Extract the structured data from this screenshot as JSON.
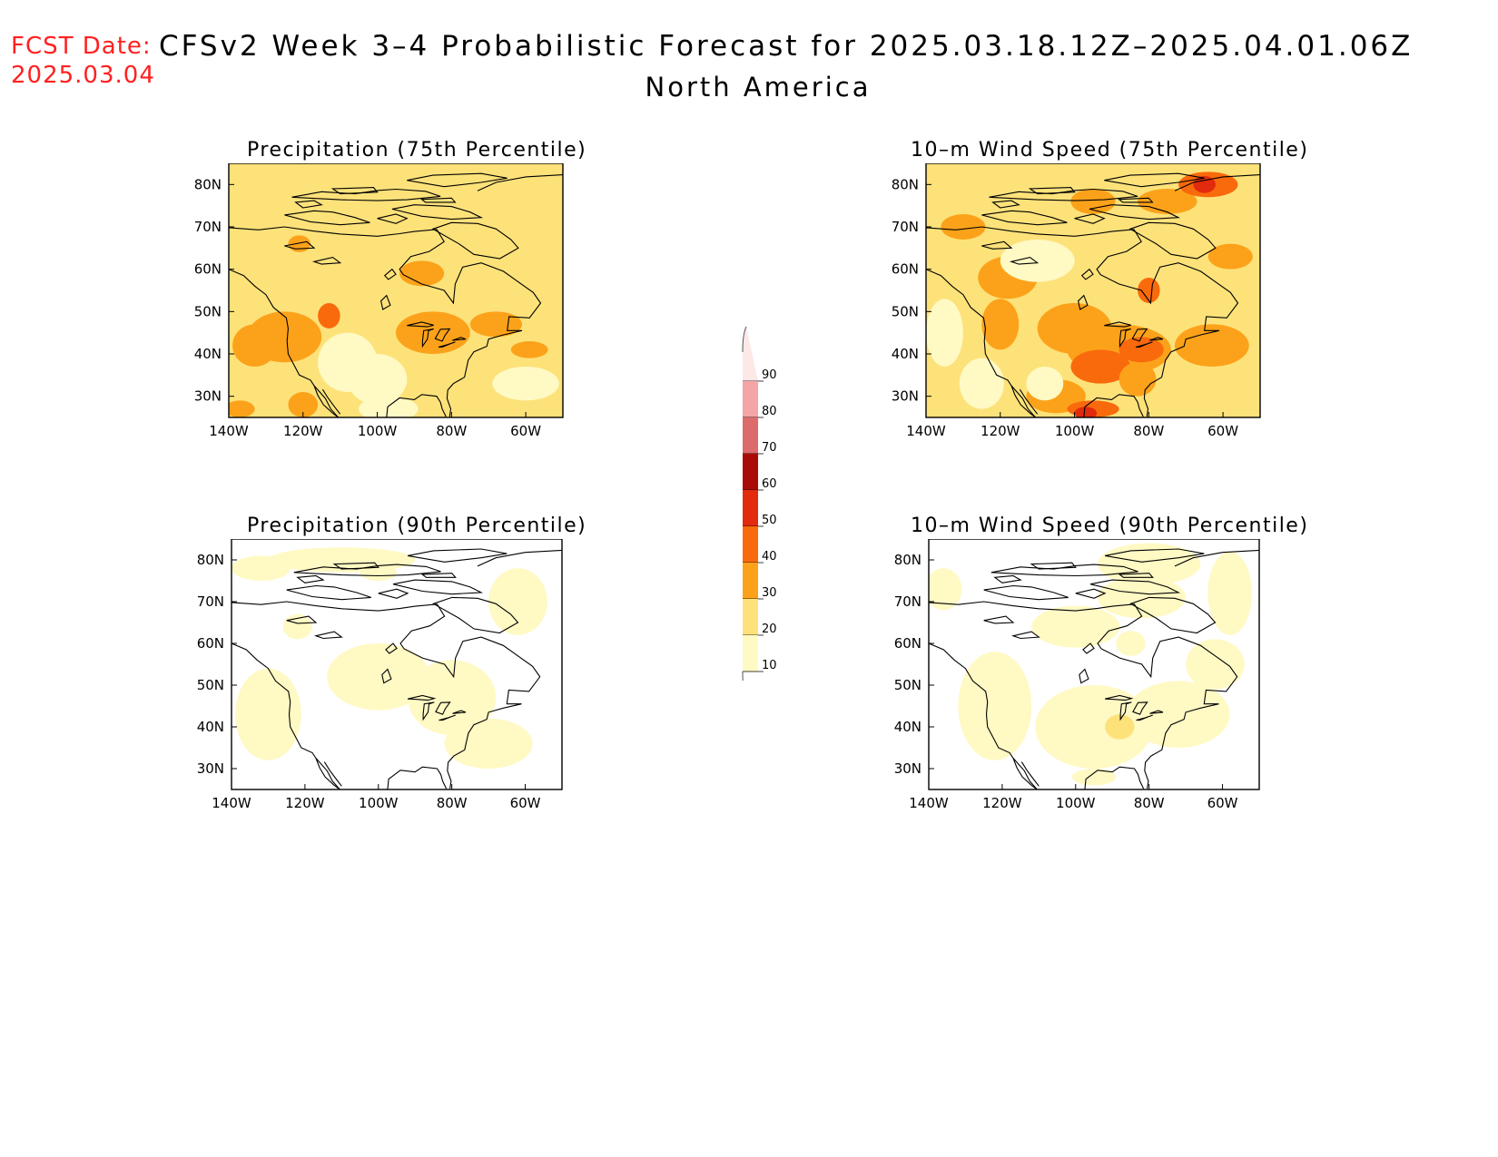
{
  "header": {
    "fcst_label": "FCST Date:",
    "fcst_date": "2025.03.04",
    "title": "CFSv2 Week 3–4 Probabilistic Forecast for 2025.03.18.12Z–2025.04.01.06Z",
    "region": "North America"
  },
  "panels": [
    {
      "title": "Precipitation (75th Percentile)",
      "id": "precip-75",
      "base_level": 20
    },
    {
      "title": "10–m Wind Speed (75th Percentile)",
      "id": "wind-75",
      "base_level": 20
    },
    {
      "title": "Precipitation (90th Percentile)",
      "id": "precip-90",
      "base_level": 0
    },
    {
      "title": "10–m Wind Speed (90th Percentile)",
      "id": "wind-90",
      "base_level": 0
    }
  ],
  "axes": {
    "lon_labels": [
      "140W",
      "120W",
      "100W",
      "80W",
      "60W"
    ],
    "lat_labels": [
      "80N",
      "70N",
      "60N",
      "50N",
      "40N",
      "30N"
    ],
    "lon_range": [
      -140,
      -50
    ],
    "lat_range": [
      25,
      85
    ]
  },
  "colorbar": {
    "levels": [
      10,
      20,
      30,
      40,
      50,
      60,
      70,
      80,
      90
    ],
    "labels": [
      "90",
      "80",
      "70",
      "60",
      "50",
      "40",
      "30",
      "20",
      "10"
    ],
    "colors": [
      "#fff9c4",
      "#fde27a",
      "#fca21a",
      "#f96a0c",
      "#e22a0c",
      "#a90c06",
      "#dd6b6b",
      "#f4a5a5",
      "#fde8e8"
    ]
  }
}
